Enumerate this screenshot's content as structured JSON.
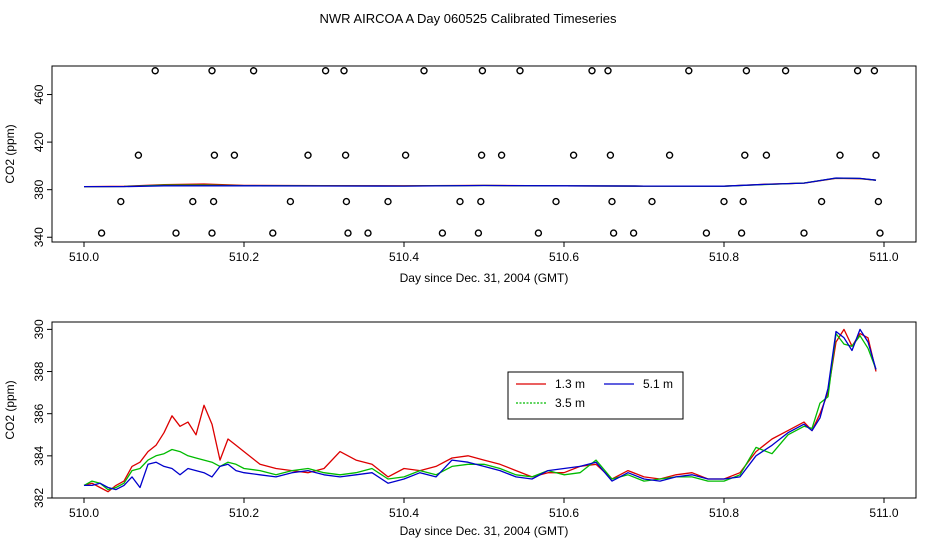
{
  "title": "NWR AIRCOA A  Day 060525  Calibrated Timeseries",
  "colors": {
    "s1": "#dd0000",
    "s2": "#00bb00",
    "s3": "#0000cc"
  },
  "chart_data": [
    {
      "type": "scatter",
      "title": "",
      "xlabel": "Day since Dec. 31, 2004 (GMT)",
      "ylabel": "CO2 (ppm)",
      "xlim": [
        509.96,
        511.04
      ],
      "ylim": [
        336,
        484
      ],
      "xticks": [
        510.0,
        510.2,
        510.4,
        510.6,
        510.8,
        511.0
      ],
      "xtick_labels": [
        "510.0",
        "510.2",
        "510.4",
        "510.6",
        "510.8",
        "511.0"
      ],
      "yticks": [
        340,
        380,
        420,
        460
      ],
      "ytick_labels": [
        "340",
        "380",
        "420",
        "460"
      ],
      "points": {
        "x": [
          510.022,
          510.046,
          510.068,
          510.089,
          510.115,
          510.136,
          510.16,
          510.162,
          510.163,
          510.16,
          510.188,
          510.212,
          510.236,
          510.258,
          510.28,
          510.302,
          510.325,
          510.327,
          510.328,
          510.33,
          510.355,
          510.38,
          510.402,
          510.425,
          510.448,
          510.47,
          510.493,
          510.496,
          510.497,
          510.498,
          510.522,
          510.545,
          510.568,
          510.59,
          510.612,
          510.635,
          510.655,
          510.658,
          510.66,
          510.662,
          510.687,
          510.71,
          510.732,
          510.756,
          510.778,
          510.8,
          510.822,
          510.824,
          510.826,
          510.828,
          510.853,
          510.877,
          510.9,
          510.922,
          510.945,
          510.967,
          510.988,
          510.99,
          510.993,
          510.995
        ],
        "y": [
          343.5,
          370,
          409,
          480,
          343.5,
          370,
          343.5,
          370,
          409,
          480,
          409,
          480,
          343.5,
          370,
          409,
          480,
          480,
          409,
          370,
          343.5,
          343.5,
          370,
          409,
          480,
          343.5,
          370,
          343.5,
          370,
          409,
          480,
          409,
          480,
          343.5,
          370,
          409,
          480,
          480,
          409,
          370,
          343.5,
          343.5,
          370,
          409,
          480,
          343.5,
          370,
          343.5,
          370,
          409,
          480,
          409,
          480,
          343.5,
          370,
          409,
          480,
          480,
          409,
          370,
          343.5
        ]
      },
      "series": [
        {
          "name": "1.3 m",
          "x": [
            510.0,
            510.05,
            510.1,
            510.15,
            510.2,
            510.3,
            510.4,
            510.5,
            510.6,
            510.7,
            510.8,
            510.85,
            510.9,
            510.94,
            510.97,
            510.99
          ],
          "values": [
            382.6,
            382.8,
            384.2,
            384.8,
            383.6,
            383.4,
            383.3,
            383.6,
            383.2,
            383.0,
            383.0,
            384.5,
            385.5,
            389.6,
            389.2,
            388.0
          ]
        },
        {
          "name": "3.5 m",
          "x": [
            510.0,
            510.05,
            510.1,
            510.15,
            510.2,
            510.3,
            510.4,
            510.5,
            510.6,
            510.7,
            510.8,
            510.85,
            510.9,
            510.94,
            510.97,
            510.99
          ],
          "values": [
            382.6,
            382.7,
            383.8,
            383.8,
            383.4,
            383.2,
            383.1,
            383.5,
            383.2,
            383.0,
            382.9,
            384.3,
            385.6,
            389.7,
            389.4,
            388.0
          ]
        },
        {
          "name": "5.1 m",
          "x": [
            510.0,
            510.05,
            510.1,
            510.15,
            510.2,
            510.3,
            510.4,
            510.5,
            510.6,
            510.7,
            510.8,
            510.85,
            510.9,
            510.94,
            510.97,
            510.99
          ],
          "values": [
            382.6,
            382.6,
            383.3,
            383.3,
            383.3,
            383.1,
            383.0,
            383.5,
            383.3,
            383.0,
            382.9,
            384.4,
            385.5,
            389.8,
            389.5,
            388.0
          ]
        }
      ]
    },
    {
      "type": "line",
      "title": "",
      "xlabel": "Day since Dec. 31, 2004 (GMT)",
      "ylabel": "CO2 (ppm)",
      "xlim": [
        509.96,
        511.04
      ],
      "ylim": [
        382.0,
        390.35
      ],
      "xticks": [
        510.0,
        510.2,
        510.4,
        510.6,
        510.8,
        511.0
      ],
      "xtick_labels": [
        "510.0",
        "510.2",
        "510.4",
        "510.6",
        "510.8",
        "511.0"
      ],
      "yticks": [
        382,
        384,
        386,
        388,
        390
      ],
      "ytick_labels": [
        "382",
        "384",
        "386",
        "388",
        "390"
      ],
      "legend": [
        "1.3 m",
        "3.5 m",
        "5.1 m"
      ],
      "legend_position": "center-right",
      "series": [
        {
          "name": "1.3 m",
          "x": [
            510.0,
            510.01,
            510.02,
            510.03,
            510.04,
            510.05,
            510.06,
            510.07,
            510.08,
            510.09,
            510.1,
            510.11,
            510.12,
            510.13,
            510.14,
            510.15,
            510.16,
            510.17,
            510.18,
            510.19,
            510.2,
            510.22,
            510.24,
            510.26,
            510.28,
            510.3,
            510.32,
            510.34,
            510.36,
            510.38,
            510.4,
            510.42,
            510.44,
            510.46,
            510.48,
            510.5,
            510.52,
            510.54,
            510.56,
            510.58,
            510.6,
            510.62,
            510.64,
            510.66,
            510.68,
            510.7,
            510.72,
            510.74,
            510.76,
            510.78,
            510.8,
            510.82,
            510.84,
            510.86,
            510.88,
            510.9,
            510.91,
            510.92,
            510.93,
            510.94,
            510.95,
            510.96,
            510.97,
            510.98,
            510.99
          ],
          "values": [
            382.6,
            382.7,
            382.5,
            382.3,
            382.6,
            382.8,
            383.5,
            383.7,
            384.2,
            384.5,
            385.1,
            385.9,
            385.4,
            385.6,
            385.0,
            386.4,
            385.5,
            383.8,
            384.8,
            384.5,
            384.2,
            383.6,
            383.4,
            383.3,
            383.2,
            383.4,
            384.2,
            383.8,
            383.6,
            383.0,
            383.4,
            383.3,
            383.5,
            383.9,
            384.0,
            383.8,
            383.6,
            383.3,
            383.0,
            383.2,
            383.2,
            383.5,
            383.6,
            382.9,
            383.3,
            383.0,
            382.9,
            383.1,
            383.2,
            382.9,
            382.9,
            383.2,
            384.2,
            384.8,
            385.2,
            385.6,
            385.2,
            386.0,
            387.0,
            389.4,
            390.0,
            389.2,
            389.8,
            389.6,
            388.0
          ]
        },
        {
          "name": "3.5 m",
          "x": [
            510.0,
            510.01,
            510.02,
            510.03,
            510.04,
            510.05,
            510.06,
            510.07,
            510.08,
            510.09,
            510.1,
            510.11,
            510.12,
            510.13,
            510.14,
            510.15,
            510.16,
            510.17,
            510.18,
            510.19,
            510.2,
            510.22,
            510.24,
            510.26,
            510.28,
            510.3,
            510.32,
            510.34,
            510.36,
            510.38,
            510.4,
            510.42,
            510.44,
            510.46,
            510.48,
            510.5,
            510.52,
            510.54,
            510.56,
            510.58,
            510.6,
            510.62,
            510.64,
            510.66,
            510.68,
            510.7,
            510.72,
            510.74,
            510.76,
            510.78,
            510.8,
            510.82,
            510.84,
            510.86,
            510.88,
            510.9,
            510.91,
            510.92,
            510.93,
            510.94,
            510.95,
            510.96,
            510.97,
            510.98,
            510.99
          ],
          "values": [
            382.6,
            382.8,
            382.7,
            382.4,
            382.5,
            382.7,
            383.3,
            383.4,
            383.8,
            384.0,
            384.1,
            384.3,
            384.2,
            384.0,
            383.9,
            383.8,
            383.7,
            383.5,
            383.7,
            383.6,
            383.4,
            383.3,
            383.1,
            383.3,
            383.4,
            383.2,
            383.1,
            383.2,
            383.4,
            382.9,
            383.0,
            383.3,
            383.1,
            383.5,
            383.6,
            383.6,
            383.4,
            383.1,
            383.0,
            383.3,
            383.1,
            383.2,
            383.8,
            382.9,
            383.1,
            382.8,
            382.9,
            383.0,
            383.0,
            382.8,
            382.8,
            383.1,
            384.4,
            384.1,
            385.0,
            385.4,
            385.3,
            386.5,
            386.8,
            389.8,
            389.3,
            389.2,
            389.7,
            389.1,
            388.1
          ]
        },
        {
          "name": "5.1 m",
          "x": [
            510.0,
            510.01,
            510.02,
            510.03,
            510.04,
            510.05,
            510.06,
            510.07,
            510.08,
            510.09,
            510.1,
            510.11,
            510.12,
            510.13,
            510.14,
            510.15,
            510.16,
            510.17,
            510.18,
            510.19,
            510.2,
            510.22,
            510.24,
            510.26,
            510.28,
            510.3,
            510.32,
            510.34,
            510.36,
            510.38,
            510.4,
            510.42,
            510.44,
            510.46,
            510.48,
            510.5,
            510.52,
            510.54,
            510.56,
            510.58,
            510.6,
            510.62,
            510.64,
            510.66,
            510.68,
            510.7,
            510.72,
            510.74,
            510.76,
            510.78,
            510.8,
            510.82,
            510.84,
            510.86,
            510.88,
            510.9,
            510.91,
            510.92,
            510.93,
            510.94,
            510.95,
            510.96,
            510.97,
            510.98,
            510.99
          ],
          "values": [
            382.6,
            382.6,
            382.7,
            382.5,
            382.4,
            382.6,
            383.0,
            382.5,
            383.6,
            383.7,
            383.5,
            383.4,
            383.1,
            383.4,
            383.3,
            383.2,
            383.0,
            383.5,
            383.6,
            383.3,
            383.2,
            383.1,
            383.0,
            383.2,
            383.3,
            383.1,
            383.0,
            383.1,
            383.2,
            382.7,
            382.9,
            383.2,
            383.0,
            383.8,
            383.7,
            383.5,
            383.3,
            383.0,
            382.9,
            383.3,
            383.4,
            383.5,
            383.7,
            382.8,
            383.2,
            382.9,
            382.8,
            383.0,
            383.1,
            382.9,
            382.9,
            383.0,
            384.0,
            384.5,
            385.1,
            385.5,
            385.2,
            385.8,
            387.2,
            389.9,
            389.6,
            389.0,
            390.0,
            389.4,
            388.1
          ]
        }
      ]
    }
  ]
}
